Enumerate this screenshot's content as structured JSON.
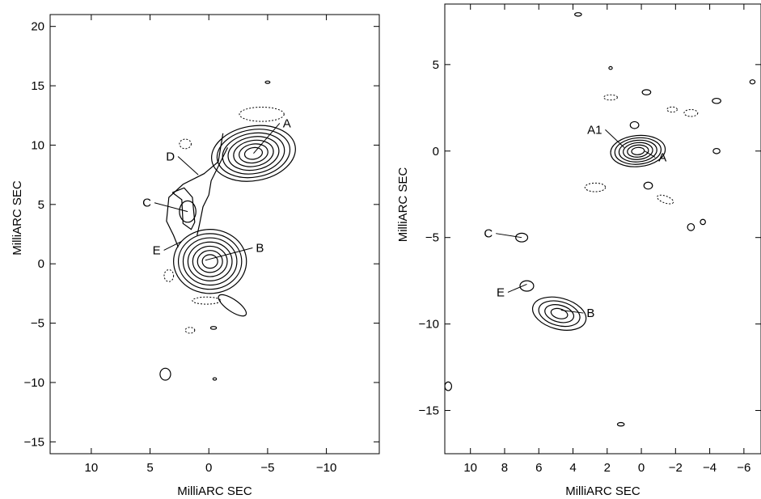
{
  "chart_data": [
    {
      "type": "contour",
      "xlabel": "MilliARC SEC",
      "ylabel": "MilliARC SEC",
      "xlim": [
        13.5,
        -14.5
      ],
      "ylim": [
        -16,
        21
      ],
      "x_reversed": true,
      "xticks": [
        10,
        5,
        0,
        -5,
        -10
      ],
      "yticks": [
        20,
        15,
        10,
        5,
        0,
        -5,
        -10,
        -15
      ],
      "components": [
        {
          "name": "A",
          "x": -3.8,
          "y": 9.3,
          "label_at": [
            -6.3,
            11.5
          ]
        },
        {
          "name": "B",
          "x": 0.3,
          "y": 0.3,
          "label_at": [
            -4.0,
            1.0
          ]
        },
        {
          "name": "C",
          "x": 1.8,
          "y": 4.4,
          "label_at": [
            4.9,
            4.8
          ]
        },
        {
          "name": "D",
          "x": 0.9,
          "y": 7.5,
          "label_at": [
            2.9,
            8.7
          ]
        },
        {
          "name": "E",
          "x": 2.3,
          "y": 1.9,
          "label_at": [
            4.1,
            0.8
          ]
        }
      ]
    },
    {
      "type": "contour",
      "xlabel": "MilliARC SEC",
      "ylabel": "MilliARC SEC",
      "xlim": [
        11.5,
        -7.0
      ],
      "ylim": [
        -17.5,
        8.5
      ],
      "x_reversed": true,
      "xticks": [
        10,
        8,
        6,
        4,
        2,
        0,
        -2,
        -4,
        -6
      ],
      "yticks": [
        5,
        0,
        -5,
        -10,
        -15
      ],
      "components": [
        {
          "name": "A1",
          "x": 1.0,
          "y": 0.2,
          "label_at": [
            2.3,
            1.0
          ]
        },
        {
          "name": "A",
          "x": -0.2,
          "y": 0.0,
          "label_at": [
            -1.0,
            -0.6
          ]
        },
        {
          "name": "B",
          "x": 4.7,
          "y": -9.2,
          "label_at": [
            3.2,
            -9.6
          ]
        },
        {
          "name": "C",
          "x": 7.0,
          "y": -5.0,
          "label_at": [
            8.7,
            -5.0
          ]
        },
        {
          "name": "E",
          "x": 6.7,
          "y": -7.7,
          "label_at": [
            8.0,
            -8.4
          ]
        }
      ]
    }
  ]
}
